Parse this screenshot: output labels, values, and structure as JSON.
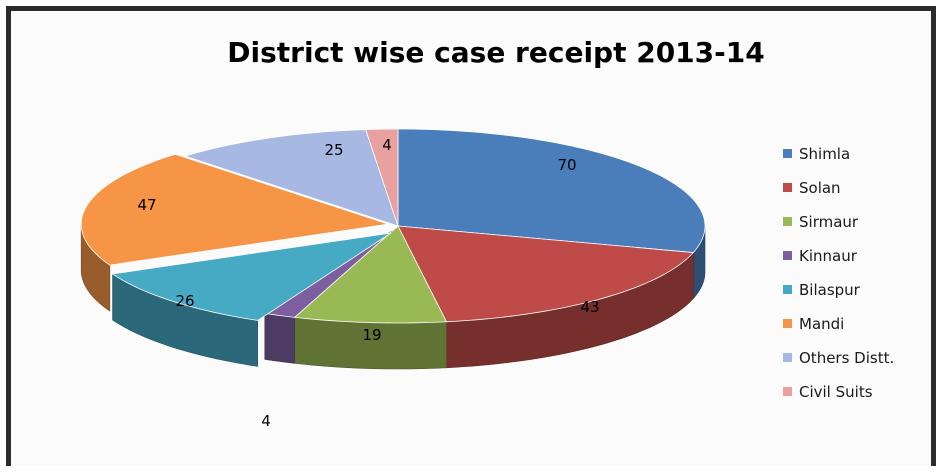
{
  "chart_data": {
    "type": "pie",
    "title": "District wise case receipt  2013-14",
    "categories": [
      "Shimla",
      "Solan",
      "Sirmaur",
      "Kinnaur",
      "Bilaspur",
      "Mandi",
      "Others Distt.",
      "Civil Suits"
    ],
    "values": [
      70,
      43,
      19,
      4,
      26,
      47,
      25,
      4
    ],
    "data_labels": [
      "70",
      "43",
      "19",
      "4",
      "26",
      "47",
      "25",
      "4"
    ],
    "colors": [
      "#4a7ebb",
      "#be4b48",
      "#98b954",
      "#7d5fa0",
      "#46aac5",
      "#f69546",
      "#a7b9e3",
      "#e9a19f"
    ],
    "legend_placement": "right",
    "style": "3d-exploded-pie"
  }
}
